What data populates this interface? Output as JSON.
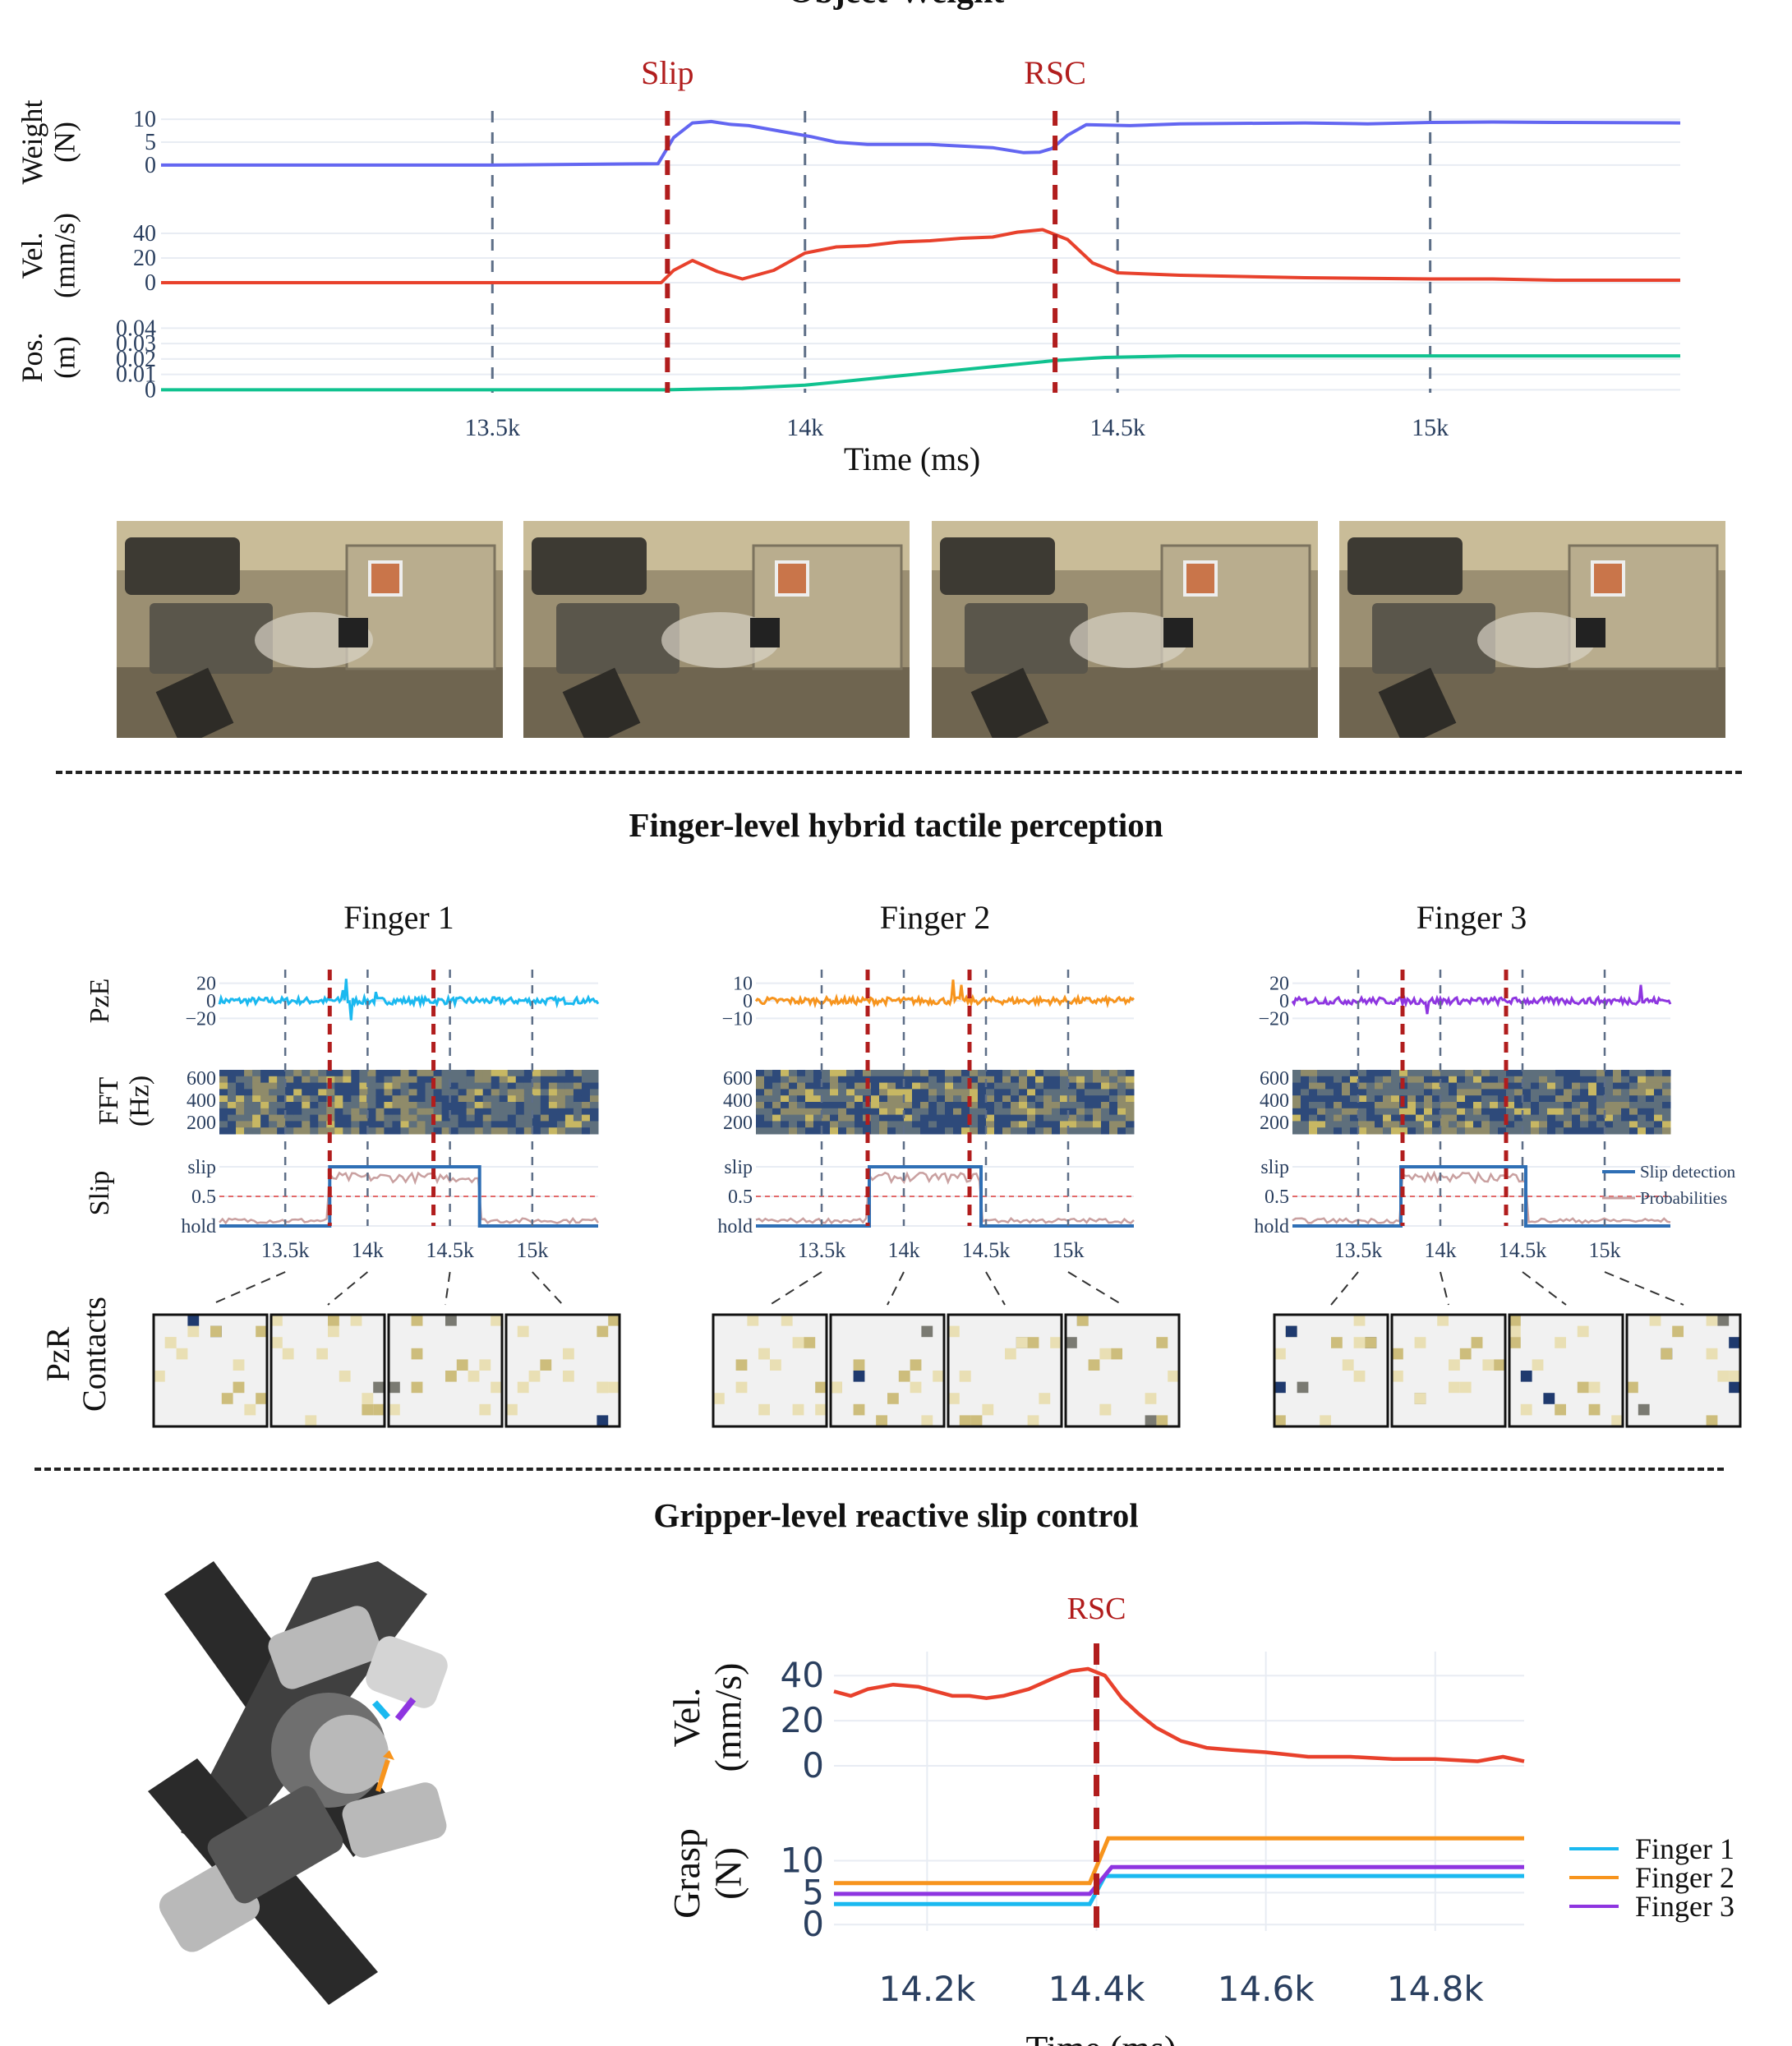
{
  "sections": {
    "top_title": "Object-Weight",
    "finger_title": "Finger-level hybrid tactile perception",
    "gripper_title": "Gripper-level reactive slip control"
  },
  "colors": {
    "weight": "#6366f1",
    "vel": "#e8412c",
    "pos": "#10c28f",
    "event": "#b11d1d",
    "f1": "#1ab9f0",
    "f2": "#f7941d",
    "f3": "#8e35e0",
    "slip_det": "#2f6fb5",
    "prob": "#c9a0a0",
    "grid": "#e8ecf3",
    "dash": "#5d6e87"
  },
  "chart_data": [
    {
      "id": "top",
      "type": "line",
      "title": "Object-Weight",
      "xlabel": "Time (ms)",
      "xlim": [
        12970,
        15400
      ],
      "xticks": [
        13500,
        14000,
        14500,
        15000
      ],
      "xtick_labels": [
        "13.5k",
        "14k",
        "14.5k",
        "15k"
      ],
      "events": [
        {
          "label": "Slip",
          "x": 13780
        },
        {
          "label": "RSC",
          "x": 14400
        }
      ],
      "series": [
        {
          "name": "Weight",
          "ylabel_lines": [
            "Weight",
            "(N)"
          ],
          "ylim": [
            -2,
            12
          ],
          "yticks": [
            0,
            5,
            10
          ],
          "ytick_labels": [
            "0",
            "5",
            "10"
          ],
          "color_key": "weight",
          "x": [
            12970,
            13500,
            13765,
            13790,
            13820,
            13850,
            13880,
            13910,
            13960,
            14010,
            14050,
            14100,
            14200,
            14300,
            14350,
            14375,
            14395,
            14420,
            14450,
            14520,
            14600,
            14800,
            14900,
            15000,
            15100,
            15200,
            15400
          ],
          "y": [
            0,
            0,
            0.3,
            6,
            9.2,
            9.5,
            8.9,
            8.6,
            7.4,
            6.2,
            5.0,
            4.5,
            4.5,
            3.8,
            2.7,
            2.8,
            3.6,
            6.5,
            8.8,
            8.6,
            9.0,
            9.2,
            9.0,
            9.3,
            9.4,
            9.3,
            9.2
          ]
        },
        {
          "name": "Vel.",
          "ylabel_lines": [
            "Vel.",
            "(mm/s)"
          ],
          "ylim": [
            -4,
            48
          ],
          "yticks": [
            0,
            20,
            40
          ],
          "ytick_labels": [
            "0",
            "20",
            "40"
          ],
          "color_key": "vel",
          "x": [
            12970,
            13770,
            13790,
            13820,
            13860,
            13900,
            13950,
            14000,
            14050,
            14100,
            14150,
            14200,
            14250,
            14300,
            14340,
            14380,
            14420,
            14460,
            14500,
            14550,
            14600,
            14800,
            15000,
            15100,
            15200,
            15400
          ],
          "y": [
            0,
            0,
            10,
            18,
            9,
            3,
            10,
            24,
            29,
            30,
            33,
            34,
            36,
            37,
            41,
            43,
            35,
            16,
            8,
            7,
            6,
            4,
            3,
            3,
            2,
            2
          ]
        },
        {
          "name": "Pos.",
          "ylabel_lines": [
            "Pos.",
            "(m)"
          ],
          "ylim": [
            -0.003,
            0.045
          ],
          "yticks": [
            0,
            0.01,
            0.02,
            0.03,
            0.04
          ],
          "ytick_labels": [
            "0",
            "0.01",
            "0.02",
            "0.03",
            "0.04"
          ],
          "color_key": "pos",
          "x": [
            12970,
            13780,
            13900,
            14000,
            14100,
            14200,
            14300,
            14400,
            14480,
            14600,
            14800,
            15400
          ],
          "y": [
            0,
            0,
            0.001,
            0.003,
            0.007,
            0.011,
            0.015,
            0.019,
            0.021,
            0.022,
            0.022,
            0.022
          ]
        }
      ]
    },
    {
      "id": "fingers",
      "type": "line",
      "xlim": [
        13100,
        15400
      ],
      "xticks": [
        13500,
        14000,
        14500,
        15000
      ],
      "xtick_labels": [
        "13.5k",
        "14k",
        "14.5k",
        "15k"
      ],
      "row_labels": [
        [
          "PzE"
        ],
        [
          "FFT",
          "(Hz)"
        ],
        [
          "Slip"
        ]
      ],
      "slip_yticks": [
        "slip",
        "0.5",
        "hold"
      ],
      "legend": [
        "Slip detection",
        "Probabilities"
      ],
      "contacts_label": [
        "PzR",
        "Contacts"
      ],
      "fingers": [
        {
          "name": "Finger 1",
          "color_key": "f1",
          "events": [
            13770,
            14400
          ],
          "pze_yticks": [
            20,
            0,
            -20
          ],
          "pze_ytick_labels": [
            "20",
            "0",
            "−20"
          ],
          "pze_ylim": [
            -28,
            28
          ],
          "fft_yticks": [
            "600",
            "400",
            "200"
          ],
          "spikes": [
            [
              13870,
              25
            ],
            [
              13900,
              -22
            ],
            [
              13850,
              12
            ],
            [
              14050,
              10
            ]
          ],
          "slip_on": [
            13770,
            14680
          ]
        },
        {
          "name": "Finger 2",
          "color_key": "f2",
          "events": [
            13780,
            14400
          ],
          "pze_yticks": [
            10,
            0,
            -10
          ],
          "pze_ytick_labels": [
            "10",
            "0",
            "−10"
          ],
          "pze_ylim": [
            -14,
            14
          ],
          "fft_yticks": [
            "600",
            "400",
            "200"
          ],
          "spikes": [
            [
              14300,
              12
            ],
            [
              14350,
              9
            ]
          ],
          "slip_on": [
            13790,
            14470
          ]
        },
        {
          "name": "Finger 3",
          "color_key": "f3",
          "events": [
            13770,
            14400
          ],
          "pze_yticks": [
            20,
            0,
            -20
          ],
          "pze_ytick_labels": [
            "20",
            "0",
            "−20"
          ],
          "pze_ylim": [
            -28,
            28
          ],
          "fft_yticks": [
            "600",
            "400",
            "200"
          ],
          "spikes": [
            [
              15220,
              18
            ],
            [
              13920,
              -15
            ]
          ],
          "slip_on": [
            13760,
            14520
          ]
        }
      ]
    },
    {
      "id": "bottom",
      "type": "line",
      "xlabel": "Time (ms)",
      "xlim": [
        14090,
        14905
      ],
      "xticks": [
        14200,
        14400,
        14600,
        14800
      ],
      "xtick_labels": [
        "14.2k",
        "14.4k",
        "14.6k",
        "14.8k"
      ],
      "events": [
        {
          "label": "RSC",
          "x": 14400
        }
      ],
      "vel": {
        "ylabel_lines": [
          "Vel.",
          "(mm/s)"
        ],
        "ylim": [
          -4,
          47
        ],
        "yticks": [
          0,
          20,
          40
        ],
        "ytick_labels": [
          "0",
          "20",
          "40"
        ],
        "x": [
          14090,
          14110,
          14130,
          14160,
          14190,
          14210,
          14230,
          14250,
          14270,
          14290,
          14320,
          14350,
          14370,
          14390,
          14410,
          14430,
          14450,
          14470,
          14500,
          14530,
          14560,
          14600,
          14650,
          14700,
          14750,
          14800,
          14850,
          14880,
          14905
        ],
        "y": [
          33,
          31,
          34,
          36,
          35,
          33,
          31,
          31,
          30,
          31,
          34,
          39,
          42,
          43,
          40,
          30,
          23,
          17,
          11,
          8,
          7,
          6,
          4,
          4,
          3,
          3,
          2,
          4,
          2
        ]
      },
      "grasp": {
        "ylabel_lines": [
          "Grasp",
          "(N)"
        ],
        "ylim": [
          -1,
          17
        ],
        "yticks": [
          0,
          5,
          10
        ],
        "ytick_labels": [
          "0",
          "5",
          "10"
        ],
        "series": [
          {
            "name": "Finger 1",
            "color_key": "f1",
            "before": 3.2,
            "after": 7.6
          },
          {
            "name": "Finger 2",
            "color_key": "f2",
            "before": 6.5,
            "after": 13.5
          },
          {
            "name": "Finger 3",
            "color_key": "f3",
            "before": 4.8,
            "after": 9.0
          }
        ]
      }
    }
  ]
}
